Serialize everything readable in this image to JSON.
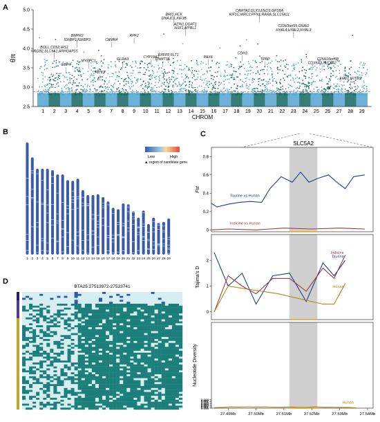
{
  "figure": {
    "panel_letters": [
      "A",
      "B",
      "C",
      "D"
    ]
  },
  "colors": {
    "manhattan_light": "#5ba8d4",
    "manhattan_dark": "#1f6f6a",
    "taurine": "#1f3f8c",
    "indicine": "#a03a3a",
    "hunan": "#b08a10",
    "region_fill": "#cfcfcf",
    "heat_low": "#3b5ba9",
    "heat_high": "#e64b35",
    "hap_teal": "#1d7f7a",
    "hap_light": "#d6edf2"
  },
  "chart_data": [
    {
      "type": "scatter",
      "panel": "A",
      "ylabel": "θπ",
      "xlabel": "CHROM",
      "ylim": [
        2.5,
        5.0
      ],
      "yticks": [
        "2.5",
        "3.0",
        "3.5",
        "4.0",
        "4.5",
        "5.0"
      ],
      "chromosomes": [
        "1",
        "2",
        "3",
        "4",
        "5",
        "6",
        "7",
        "8",
        "9",
        "10",
        "11",
        "12",
        "13",
        "14",
        "15",
        "16",
        "17",
        "18",
        "19",
        "20",
        "21",
        "22",
        "23",
        "24",
        "25",
        "26",
        "27",
        "28",
        "29"
      ],
      "threshold": 2.88,
      "genes": [
        {
          "label": "BOLL,CD52,IRS1",
          "chrom": 2,
          "y": 4.0
        },
        {
          "label": "NRGB2,SLC9A1,ARHGAP15",
          "chrom": 2,
          "y": 3.9
        },
        {
          "label": "GBP4",
          "chrom": 3,
          "y": 3.55
        },
        {
          "label": "BMPR2",
          "chrom": 4,
          "y": 4.3
        },
        {
          "label": "IGFBP1,IGFBP3",
          "chrom": 4,
          "y": 4.2
        },
        {
          "label": "MYBPC1",
          "chrom": 5,
          "y": 3.65
        },
        {
          "label": "PITX2",
          "chrom": 6,
          "y": 3.35
        },
        {
          "label": "CAMK4",
          "chrom": 7,
          "y": 4.2
        },
        {
          "label": "GLRA3",
          "chrom": 8,
          "y": 3.7
        },
        {
          "label": "RPF2",
          "chrom": 9,
          "y": 4.3
        },
        {
          "label": "CYP19A1",
          "chrom": 10.5,
          "y": 3.75
        },
        {
          "label": "DNMT3A",
          "chrom": 11.5,
          "y": 3.7
        },
        {
          "label": "RXFP2,FLT1",
          "chrom": 12,
          "y": 3.8
        },
        {
          "label": "BMI1,HCK",
          "chrom": 12.5,
          "y": 4.85
        },
        {
          "label": "DNAJC1,KIF3B",
          "chrom": 12.5,
          "y": 4.75
        },
        {
          "label": "AZIN1,DGAT1",
          "chrom": 13.5,
          "y": 4.6
        },
        {
          "label": "HSF1,MYBL1",
          "chrom": 13.5,
          "y": 4.5
        },
        {
          "label": "PAX6",
          "chrom": 15.5,
          "y": 3.75
        },
        {
          "label": "CDH3",
          "chrom": 18.5,
          "y": 3.85
        },
        {
          "label": "CAMTA2,DLX3,ENO3,GP1BA",
          "chrom": 20,
          "y": 4.95
        },
        {
          "label": "KIF1C,MRC2,PFN1,RARA,SLC25A11",
          "chrom": 20,
          "y": 4.85
        },
        {
          "label": "TPPP",
          "chrom": 20.5,
          "y": 3.7
        },
        {
          "label": "C22H3orf35,GNAI2",
          "chrom": 23,
          "y": 4.55
        },
        {
          "label": "HYAL4,HYAL2,HYAL3",
          "chrom": 23,
          "y": 4.45
        },
        {
          "label": "C25H16orf58",
          "chrom": 26,
          "y": 3.7
        },
        {
          "label": "COX6A2,SLC5A2",
          "chrom": 25.5,
          "y": 3.6
        },
        {
          "label": "EHD1,IFITM3",
          "chrom": 28,
          "y": 3.2
        }
      ]
    },
    {
      "type": "heatmap",
      "panel": "B",
      "legend": {
        "low": "Low",
        "high": "High",
        "marker_label": "region of candidate gene"
      },
      "categories": [
        "1",
        "2",
        "3",
        "4",
        "5",
        "6",
        "7",
        "8",
        "9",
        "10",
        "11",
        "12",
        "13",
        "14",
        "15",
        "16",
        "17",
        "18",
        "19",
        "20",
        "21",
        "22",
        "23",
        "24",
        "25",
        "26",
        "27",
        "28",
        "29"
      ],
      "chrom_length_mb": [
        158,
        137,
        121,
        121,
        121,
        119,
        113,
        113,
        105,
        104,
        107,
        91,
        84,
        84,
        85,
        81,
        75,
        66,
        64,
        72,
        71,
        61,
        52,
        62,
        43,
        52,
        45,
        46,
        51
      ]
    },
    {
      "type": "line",
      "panel": "C",
      "title": "SLC5A2",
      "x": [
        27.48,
        27.485,
        27.49,
        27.495,
        27.5,
        27.505,
        27.51,
        27.515,
        27.52,
        27.525,
        27.53,
        27.535,
        27.54
      ],
      "xticks": [
        "27.49Mb",
        "27.50Mb",
        "27.51Mb",
        "27.52Mb",
        "27.53Mb",
        "27.54Mb"
      ],
      "xtick_values": [
        27.49,
        27.5,
        27.51,
        27.52,
        27.53,
        27.54
      ],
      "xlim": [
        27.484,
        27.542
      ],
      "highlight": [
        27.512,
        27.522
      ],
      "subplots": [
        {
          "ylabel": "Fst",
          "ylim": [
            -0.02,
            0.9
          ],
          "yticks": [
            0.0,
            0.2,
            0.4,
            0.6,
            0.8
          ],
          "series": [
            {
              "name": "Taurine vs Hunan",
              "color_key": "taurine",
              "x": [
                27.484,
                27.486,
                27.49,
                27.494,
                27.498,
                27.502,
                27.505,
                27.509,
                27.513,
                27.516,
                27.519,
                27.522,
                27.526,
                27.529,
                27.532,
                27.535,
                27.537,
                27.539
              ],
              "values": [
                0.29,
                0.25,
                0.28,
                0.3,
                0.31,
                0.3,
                0.45,
                0.58,
                0.52,
                0.63,
                0.52,
                0.56,
                0.6,
                0.52,
                0.45,
                0.58,
                0.59,
                0.6
              ]
            },
            {
              "name": "Indicine vs Hunan",
              "color_key": "indicine",
              "x": [
                27.484,
                27.49,
                27.5,
                27.51,
                27.52,
                27.53,
                27.539
              ],
              "values": [
                0.0,
                0.01,
                0.0,
                0.02,
                0.01,
                0.02,
                0.01
              ]
            }
          ]
        },
        {
          "ylabel": "Tajima's D",
          "ylim": [
            -0.3,
            3.0
          ],
          "yticks": [
            0,
            1,
            2
          ],
          "series": [
            {
              "name": "Taurine",
              "color_key": "taurine",
              "x": [
                27.485,
                27.49,
                27.495,
                27.5,
                27.506,
                27.512,
                27.518,
                27.524,
                27.528,
                27.532
              ],
              "values": [
                2.3,
                1.0,
                1.5,
                0.3,
                1.4,
                1.5,
                0.4,
                1.9,
                1.4,
                2.0
              ]
            },
            {
              "name": "Indicine",
              "color_key": "indicine",
              "x": [
                27.485,
                27.49,
                27.495,
                27.5,
                27.506,
                27.512,
                27.518,
                27.524,
                27.528,
                27.532
              ],
              "values": [
                0.0,
                1.4,
                1.0,
                0.7,
                1.3,
                1.3,
                0.8,
                1.7,
                1.3,
                2.2
              ]
            },
            {
              "name": "Hunan",
              "color_key": "hunan",
              "x": [
                27.485,
                27.49,
                27.496,
                27.502,
                27.508,
                27.512,
                27.516,
                27.52,
                27.524,
                27.528,
                27.532
              ],
              "values": [
                0.0,
                1.0,
                0.9,
                0.8,
                0.7,
                0.6,
                0.5,
                0.4,
                0.3,
                0.3,
                1.1
              ]
            }
          ]
        },
        {
          "ylabel": "Nucleotide Diversity",
          "ylim": [
            0,
            0.08
          ],
          "yticks": [
            "0.000",
            "0.001",
            "0.002",
            "0.003",
            "0.004",
            "0.005",
            "0.006",
            "0.007",
            "0.008"
          ],
          "series": [
            {
              "name": "Hunan",
              "color_key": "hunan",
              "x": [
                27.485,
                27.488,
                27.491,
                27.494,
                27.497,
                27.5,
                27.503,
                27.506,
                27.509,
                27.512,
                27.515,
                27.518,
                27.521,
                27.524,
                27.527,
                27.53,
                27.533,
                27.536
              ],
              "values": [
                0.0005,
                0.0008,
                0.0012,
                0.0011,
                0.0013,
                0.0011,
                0.0012,
                0.001,
                0.0009,
                0.0011,
                0.0008,
                0.0007,
                0.0012,
                0.0009,
                0.001,
                0.0008,
                0.0007,
                0.0003
              ]
            }
          ]
        }
      ]
    },
    {
      "type": "heatmap",
      "panel": "D",
      "title": "BTA25:27513972-27523741"
    }
  ]
}
